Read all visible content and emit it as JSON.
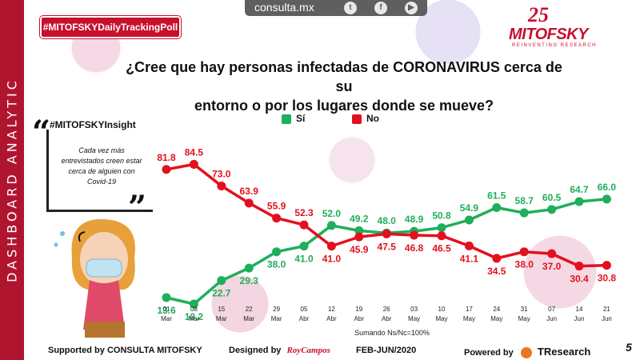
{
  "sidebar": {
    "label": "DASHBOARD ANALYTIC"
  },
  "header": {
    "hashtag": "#MITOFSKYDailyTrackingPoll",
    "site": "consulta.mx",
    "social_icons": [
      "twitter-icon",
      "facebook-icon",
      "youtube-icon"
    ],
    "logo": {
      "anniversary": "25",
      "name": "MITOFSKY",
      "tagline": "REINVENTING RESEARCH"
    }
  },
  "question": {
    "line1": "¿Cree que hay personas infectadas de CORONAVIRUS cerca de su",
    "line2": "entorno o por los lugares donde se mueve?"
  },
  "insight": {
    "tag": "#MITOFSKYInsight",
    "text": "Cada vez más entrevistados creen estar cerca de alguien con Covid-19"
  },
  "footer": {
    "supported": "Supported by   CONSULTA  MITOFSKY",
    "designed": "Designed by",
    "designer": "RoyCampos",
    "period": "FEB-JUN/2020",
    "powered": "Powered by",
    "powered_brand": "TResearch",
    "page": "5"
  },
  "colors": {
    "si": "#1fae5b",
    "no": "#e3101e",
    "brand": "#c8102e",
    "sidebar": "#b0152f"
  },
  "chart_data": {
    "type": "line",
    "x_day": [
      "01",
      "08",
      "15",
      "22",
      "29",
      "05",
      "12",
      "19",
      "26",
      "03",
      "10",
      "17",
      "24",
      "31",
      "07",
      "14",
      "21"
    ],
    "x_month": [
      "Mar",
      "Mar",
      "Mar",
      "Mar",
      "Mar",
      "Abr",
      "Abr",
      "Abr",
      "Abr",
      "May",
      "May",
      "May",
      "May",
      "May",
      "Jun",
      "Jun",
      "Jun"
    ],
    "series": [
      {
        "name": "Sí",
        "color": "#1fae5b",
        "values": [
          13.6,
          10.2,
          22.7,
          29.3,
          38.0,
          41.0,
          52.0,
          49.2,
          48.0,
          48.9,
          50.8,
          54.9,
          61.5,
          58.7,
          60.5,
          64.7,
          66.0
        ]
      },
      {
        "name": "No",
        "color": "#e3101e",
        "values": [
          81.8,
          84.5,
          73.0,
          63.9,
          55.9,
          52.3,
          41.0,
          45.9,
          47.5,
          46.8,
          46.5,
          41.1,
          34.5,
          38.0,
          37.0,
          30.4,
          30.8
        ]
      }
    ],
    "note": "Sumando Ns/Nc=100%",
    "ylim": [
      0,
      100
    ],
    "grid": false,
    "legend": "top-center"
  }
}
